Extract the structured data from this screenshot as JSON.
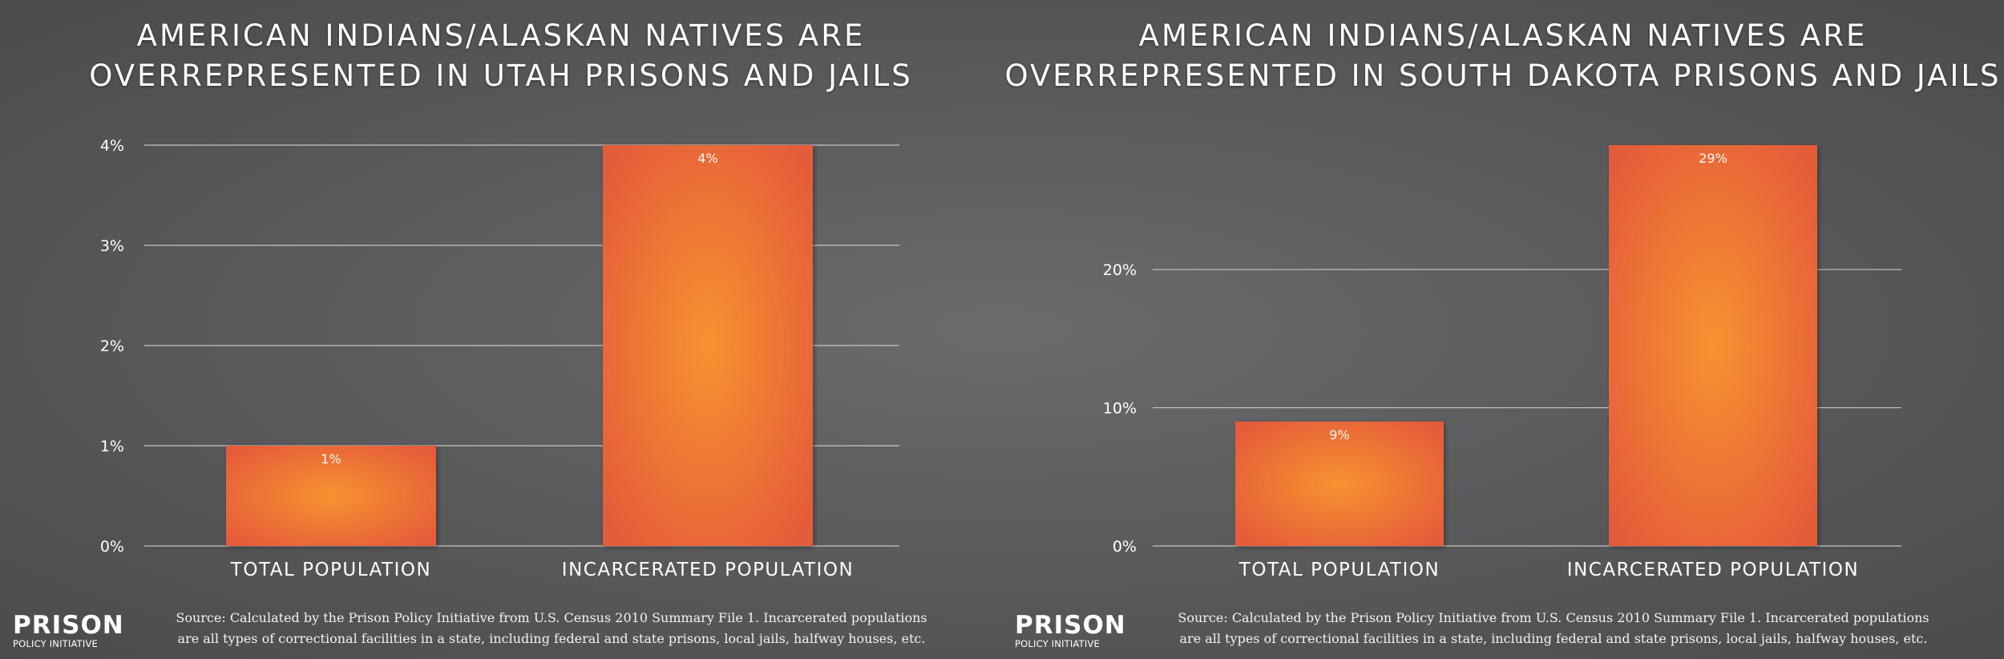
{
  "brand": {
    "line1": "PRISON",
    "line2": "POLICY INITIATIVE"
  },
  "source": {
    "line1": "Source: Calculated by the Prison Policy Initiative from U.S. Census 2010 Summary File 1. Incarcerated populations",
    "line2": "are all types of correctional facilities in a state, including federal and state prisons, local jails, halfway houses, etc."
  },
  "colors": {
    "bar_center": "#f7922f",
    "bar_edge": "#e55b3a",
    "gridline": "#d8d8d8"
  },
  "chart_data": [
    {
      "type": "bar",
      "title": "AMERICAN INDIANS/ALASKAN NATIVES ARE OVERREPRESENTED IN UTAH PRISONS AND JAILS",
      "categories": [
        "TOTAL POPULATION",
        "INCARCERATED POPULATION"
      ],
      "values": [
        1,
        4
      ],
      "data_labels": [
        "1%",
        "4%"
      ],
      "yticks": [
        0,
        1,
        2,
        3,
        4
      ],
      "ytick_labels": [
        "0%",
        "1%",
        "2%",
        "3%",
        "4%"
      ],
      "ylim": [
        0,
        4
      ],
      "grid": true,
      "legend": "none"
    },
    {
      "type": "bar",
      "title": "AMERICAN INDIANS/ALASKAN NATIVES ARE OVERREPRESENTED IN SOUTH DAKOTA PRISONS AND JAILS",
      "categories": [
        "TOTAL POPULATION",
        "INCARCERATED POPULATION"
      ],
      "values": [
        9,
        29
      ],
      "data_labels": [
        "9%",
        "29%"
      ],
      "yticks": [
        0,
        10,
        20
      ],
      "ytick_labels": [
        "0%",
        "10%",
        "20%"
      ],
      "ylim": [
        0,
        29
      ],
      "grid": true,
      "legend": "none"
    }
  ]
}
